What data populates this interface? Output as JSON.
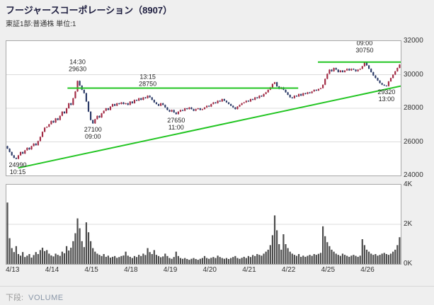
{
  "header": {
    "title": "フージャースコーポレーション（8907）",
    "subtitle": "東証1部:普通株 単位:1"
  },
  "footer": {
    "label": "下段:",
    "value": "VOLUME"
  },
  "chart_data": {
    "type": "candlestick+volume",
    "title": "フージャースコーポレーション（8907） 株価チャート",
    "price_axis": {
      "min": 24000,
      "max": 32000,
      "ticks": [
        24000,
        26000,
        28000,
        30000,
        32000
      ],
      "position": "right"
    },
    "volume_axis": {
      "min": 0,
      "max": 4000,
      "ticks": [
        {
          "label": "0K",
          "v": 0
        },
        {
          "label": "2K",
          "v": 2000
        },
        {
          "label": "4K",
          "v": 4000
        }
      ],
      "position": "right"
    },
    "x_labels": [
      "4/13",
      "4/14",
      "4/15",
      "4/18",
      "4/19",
      "4/20",
      "4/21",
      "4/22",
      "4/25",
      "4/26"
    ],
    "colors": {
      "up": "#a32b45",
      "down": "#2b3a67",
      "trend": "#22c522",
      "grid": "#dcdcdc",
      "volume": "#4d4d4d",
      "annotation": "#222222"
    },
    "days": [
      {
        "date": "4/13",
        "prices": [
          25600,
          25400,
          25200,
          25050,
          24990,
          25200,
          25400,
          25300,
          25500,
          25650,
          25550,
          25750,
          25900,
          25800,
          26050,
          26300,
          26600,
          26850
        ],
        "volumes": [
          3100,
          1300,
          800,
          600,
          900,
          500,
          420,
          600,
          350,
          420,
          500,
          320,
          450,
          600,
          500,
          700,
          820,
          650
        ]
      },
      {
        "date": "4/14",
        "prices": [
          26900,
          27050,
          27250,
          27150,
          27400,
          27300,
          27550,
          27800,
          27700,
          28000,
          28300,
          28200,
          28600,
          29000,
          29630,
          29350,
          29100,
          28900
        ],
        "volumes": [
          700,
          520,
          430,
          380,
          520,
          460,
          410,
          620,
          540,
          900,
          680,
          820,
          1150,
          1550,
          2300,
          1800,
          1150,
          850
        ]
      },
      {
        "date": "4/15",
        "prices": [
          28400,
          27800,
          27300,
          27100,
          27350,
          27550,
          27450,
          27700,
          27850,
          28000,
          27900,
          28100,
          28250,
          28150,
          28300,
          28250,
          28350,
          28250
        ],
        "volumes": [
          2100,
          1600,
          1150,
          800,
          620,
          520,
          460,
          400,
          500,
          360,
          420,
          320,
          360,
          400,
          310,
          350,
          400,
          430
        ]
      },
      {
        "date": "4/18",
        "prices": [
          28300,
          28200,
          28400,
          28300,
          28500,
          28450,
          28600,
          28500,
          28650,
          28600,
          28750,
          28650,
          28500,
          28350,
          28250,
          28150,
          28300,
          28200
        ],
        "volumes": [
          620,
          420,
          360,
          300,
          400,
          350,
          460,
          400,
          520,
          450,
          800,
          600,
          500,
          700,
          460,
          400,
          340,
          380
        ]
      },
      {
        "date": "4/19",
        "prices": [
          28050,
          27900,
          27800,
          27900,
          27750,
          27650,
          27800,
          27900,
          27850,
          28000,
          27950,
          28050,
          27950,
          27850,
          27950,
          28000,
          27900,
          27950
        ],
        "volumes": [
          520,
          400,
          300,
          260,
          350,
          620,
          400,
          300,
          260,
          300,
          250,
          210,
          260,
          300,
          250,
          210,
          260,
          300
        ]
      },
      {
        "date": "4/20",
        "prices": [
          28050,
          28150,
          28100,
          28250,
          28350,
          28300,
          28450,
          28400,
          28550,
          28450,
          28350,
          28250,
          28150,
          28050,
          27950,
          28100,
          28200,
          28300
        ],
        "volumes": [
          400,
          300,
          260,
          310,
          350,
          300,
          420,
          350,
          300,
          260,
          300,
          250,
          300,
          350,
          400,
          300,
          260,
          310
        ]
      },
      {
        "date": "4/21",
        "prices": [
          28350,
          28450,
          28400,
          28550,
          28500,
          28650,
          28600,
          28750,
          28700,
          28850,
          28950,
          29100,
          29250,
          29450,
          29550,
          29300,
          29150,
          29250
        ],
        "volumes": [
          360,
          300,
          400,
          350,
          450,
          400,
          500,
          460,
          420,
          520,
          620,
          720,
          950,
          1450,
          2450,
          1700,
          1000,
          720
        ]
      },
      {
        "date": "4/22",
        "prices": [
          29100,
          28950,
          28800,
          28650,
          28600,
          28750,
          28700,
          28850,
          28750,
          28900,
          28850,
          28950,
          28900,
          29000,
          29100,
          29050,
          29150,
          29200
        ],
        "volumes": [
          1500,
          1000,
          800,
          620,
          520,
          460,
          410,
          500,
          360,
          420,
          360,
          410,
          460,
          410,
          500,
          460,
          510,
          560
        ]
      },
      {
        "date": "4/25",
        "prices": [
          29400,
          29750,
          30050,
          30300,
          30200,
          30400,
          30300,
          30150,
          30250,
          30150,
          30250,
          30350,
          30250,
          30350,
          30300,
          30200,
          30300,
          30350
        ],
        "volumes": [
          1900,
          1400,
          1100,
          900,
          720,
          620,
          520,
          460,
          410,
          520,
          460,
          410,
          360,
          420,
          460,
          410,
          360,
          420
        ]
      },
      {
        "date": "4/26",
        "prices": [
          30500,
          30750,
          30550,
          30350,
          30150,
          29950,
          29800,
          29650,
          29500,
          29400,
          29350,
          29320,
          29600,
          29800,
          30000,
          30200,
          30400,
          30600
        ],
        "volumes": [
          1250,
          950,
          720,
          620,
          520,
          460,
          500,
          420,
          460,
          520,
          560,
          500,
          460,
          520,
          620,
          720,
          950,
          1350
        ]
      }
    ],
    "annotations": [
      {
        "day": 0,
        "bar": 4,
        "lines": [
          "24990",
          "10:15"
        ],
        "placement": "below"
      },
      {
        "day": 1,
        "bar": 14,
        "lines": [
          "14:30",
          "29630"
        ],
        "placement": "above"
      },
      {
        "day": 2,
        "bar": 3,
        "lines": [
          "27100",
          "09:00"
        ],
        "placement": "below"
      },
      {
        "day": 3,
        "bar": 10,
        "lines": [
          "13:15",
          "28750"
        ],
        "placement": "above"
      },
      {
        "day": 4,
        "bar": 5,
        "lines": [
          "27650",
          "11:00"
        ],
        "placement": "below"
      },
      {
        "day": 9,
        "bar": 1,
        "lines": [
          "09:00",
          "30750"
        ],
        "placement": "above"
      },
      {
        "day": 9,
        "bar": 11,
        "lines": [
          "29320",
          "13:00"
        ],
        "placement": "below"
      }
    ],
    "trendlines": [
      {
        "x1": 0.03,
        "p1": 24450,
        "x2": 1.0,
        "p2": 29320,
        "name": "rising-support"
      },
      {
        "x1": 0.155,
        "p1": 29200,
        "x2": 0.74,
        "p2": 29200,
        "name": "resistance-29200"
      },
      {
        "x1": 0.79,
        "p1": 30750,
        "x2": 1.0,
        "p2": 30750,
        "name": "resistance-30750"
      }
    ]
  }
}
